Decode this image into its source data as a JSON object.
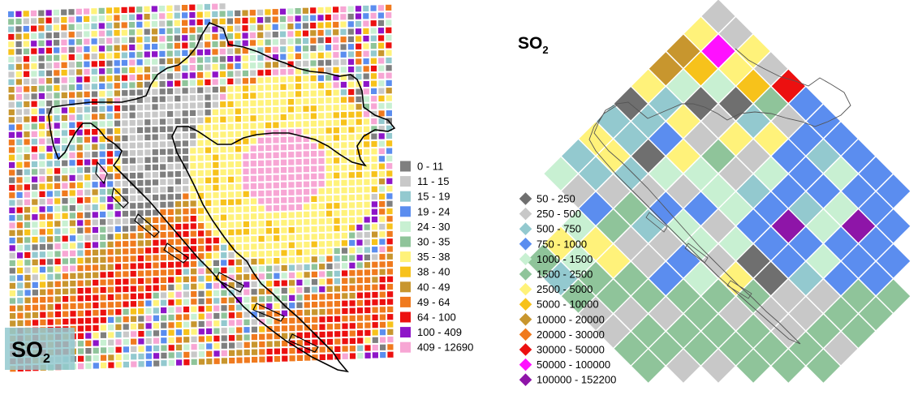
{
  "left_map": {
    "title_main": "SO",
    "title_sub": "2",
    "legend": [
      {
        "label": "0  -  11",
        "color": "#7f7f7f"
      },
      {
        "label": "11  -  15",
        "color": "#c8c8c8"
      },
      {
        "label": "15  -  19",
        "color": "#93c9cf"
      },
      {
        "label": "19  -  24",
        "color": "#5b8def"
      },
      {
        "label": "24  -  30",
        "color": "#c8f0d2"
      },
      {
        "label": "30  -  35",
        "color": "#8fc49a"
      },
      {
        "label": "35  -  38",
        "color": "#fff27a"
      },
      {
        "label": "38  -  40",
        "color": "#f7c21b"
      },
      {
        "label": "40  -  49",
        "color": "#c8962e"
      },
      {
        "label": "49  -  64",
        "color": "#f07a1e"
      },
      {
        "label": "64  -  100",
        "color": "#ec1010"
      },
      {
        "label": "100  -  409",
        "color": "#8e15c8"
      },
      {
        "label": "409  -  12690",
        "color": "#f7a6d4"
      }
    ]
  },
  "right_map": {
    "title_main": "SO",
    "title_sub": "2",
    "legend": [
      {
        "label": "50  -  250",
        "color": "#6f6f6f"
      },
      {
        "label": "250  -  500",
        "color": "#c8c8c8"
      },
      {
        "label": "500  -  750",
        "color": "#93c9cf"
      },
      {
        "label": "750  -  1000",
        "color": "#5b8def"
      },
      {
        "label": "1000  -  1500",
        "color": "#c8f0d2"
      },
      {
        "label": "1500  -  2500",
        "color": "#8fc49a"
      },
      {
        "label": "2500  -  5000",
        "color": "#fff27a"
      },
      {
        "label": "5000  -  10000",
        "color": "#f7c21b"
      },
      {
        "label": "10000  -  20000",
        "color": "#c8962e"
      },
      {
        "label": "20000  -  30000",
        "color": "#f07a1e"
      },
      {
        "label": "30000  -  50000",
        "color": "#ec1010"
      },
      {
        "label": "50000  -  100000",
        "color": "#ff10ff"
      },
      {
        "label": "100000  -  152200",
        "color": "#8e15a8"
      }
    ]
  }
}
